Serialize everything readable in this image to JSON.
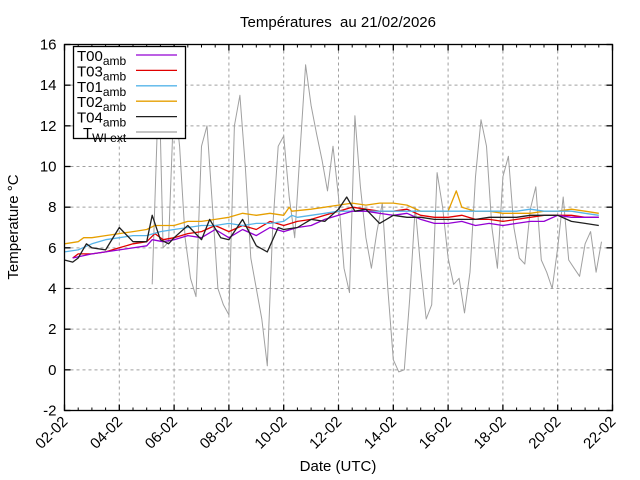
{
  "chart_data": {
    "type": "line",
    "title": "Températures  au 21/02/2026",
    "xlabel": "Date (UTC)",
    "ylabel": "Temperature °C",
    "xlim": [
      0,
      20
    ],
    "ylim": [
      -2,
      16
    ],
    "grid": true,
    "legend_position": "top-left",
    "x_unit": "days since 02-02",
    "xticks": [
      {
        "value": 0,
        "label": "02-02"
      },
      {
        "value": 2,
        "label": "04-02"
      },
      {
        "value": 4,
        "label": "06-02"
      },
      {
        "value": 6,
        "label": "08-02"
      },
      {
        "value": 8,
        "label": "10-02"
      },
      {
        "value": 10,
        "label": "12-02"
      },
      {
        "value": 12,
        "label": "14-02"
      },
      {
        "value": 14,
        "label": "16-02"
      },
      {
        "value": 16,
        "label": "18-02"
      },
      {
        "value": 18,
        "label": "20-02"
      },
      {
        "value": 20,
        "label": "22-02"
      }
    ],
    "yticks": [
      {
        "value": -2,
        "label": "-2"
      },
      {
        "value": 0,
        "label": "0"
      },
      {
        "value": 2,
        "label": "2"
      },
      {
        "value": 4,
        "label": "4"
      },
      {
        "value": 6,
        "label": "6"
      },
      {
        "value": 8,
        "label": "8"
      },
      {
        "value": 10,
        "label": "10"
      },
      {
        "value": 12,
        "label": "12"
      },
      {
        "value": 14,
        "label": "14"
      },
      {
        "value": 16,
        "label": "16"
      }
    ],
    "series": [
      {
        "name": "T00",
        "sub": "amb",
        "color": "#9400d3",
        "x": [
          0.3,
          1,
          1.5,
          2,
          3,
          3.2,
          3.6,
          4,
          4.5,
          5,
          5.5,
          6,
          6.5,
          7,
          7.5,
          8,
          8.5,
          9,
          9.5,
          10,
          10.5,
          11,
          11.5,
          12,
          12.5,
          13,
          13.5,
          14,
          14.5,
          15,
          15.5,
          16,
          16.5,
          17,
          17.5,
          18,
          18.5,
          19,
          19.5
        ],
        "y": [
          5.5,
          5.7,
          5.8,
          5.9,
          6.1,
          6.4,
          6.3,
          6.4,
          6.6,
          6.5,
          6.9,
          6.5,
          6.9,
          6.6,
          7.0,
          6.8,
          7.0,
          7.1,
          7.4,
          7.6,
          7.8,
          7.8,
          7.7,
          7.6,
          7.7,
          7.4,
          7.2,
          7.2,
          7.3,
          7.1,
          7.2,
          7.1,
          7.2,
          7.3,
          7.3,
          7.6,
          7.5,
          7.5,
          7.5
        ]
      },
      {
        "name": "T03",
        "sub": "amb",
        "color": "#e00000",
        "x": [
          0.3,
          0.5,
          1,
          1.5,
          2,
          2.5,
          3,
          3.3,
          3.6,
          4,
          4.5,
          5,
          5.5,
          6,
          6.5,
          7,
          7.5,
          8,
          8.5,
          9,
          9.5,
          10,
          10.5,
          11,
          11.5,
          12,
          12.5,
          13,
          13.5,
          14,
          14.5,
          15,
          15.5,
          16,
          16.5,
          17,
          17.5,
          18,
          18.5,
          19,
          19.5
        ],
        "y": [
          5.5,
          5.7,
          5.7,
          5.8,
          6.0,
          6.2,
          6.3,
          6.7,
          6.4,
          6.5,
          6.7,
          6.8,
          7.1,
          6.8,
          7.1,
          6.9,
          7.3,
          7.1,
          7.3,
          7.4,
          7.6,
          7.8,
          8.0,
          7.9,
          7.8,
          7.8,
          7.9,
          7.6,
          7.5,
          7.5,
          7.6,
          7.4,
          7.4,
          7.3,
          7.4,
          7.5,
          7.6,
          7.6,
          7.6,
          7.5,
          7.5
        ]
      },
      {
        "name": "T01",
        "sub": "amb",
        "color": "#56b4e9",
        "x": [
          0,
          0.5,
          1,
          1.5,
          2,
          2.5,
          3,
          3.5,
          4,
          4.5,
          5,
          5.5,
          6,
          6.5,
          7,
          7.5,
          8,
          8.3,
          8.5,
          9,
          9.5,
          10,
          10.5,
          11,
          11.5,
          12,
          12.5,
          13,
          13.5,
          14,
          14.5,
          15,
          15.5,
          16,
          16.5,
          17,
          17.5,
          18,
          18.5,
          19,
          19.5
        ],
        "y": [
          5.8,
          5.9,
          6.2,
          6.4,
          6.5,
          6.6,
          6.6,
          6.8,
          6.9,
          7.0,
          7.1,
          7.1,
          7.2,
          7.1,
          7.2,
          7.2,
          7.3,
          7.6,
          7.5,
          7.6,
          7.7,
          7.8,
          7.8,
          7.8,
          7.8,
          7.8,
          7.8,
          7.8,
          7.8,
          7.8,
          7.8,
          7.8,
          7.8,
          7.8,
          7.8,
          7.9,
          7.8,
          7.8,
          7.8,
          7.7,
          7.6
        ]
      },
      {
        "name": "T02",
        "sub": "amb",
        "color": "#e69f00",
        "x": [
          0,
          0.5,
          0.7,
          1,
          1.5,
          2,
          2.5,
          3,
          3.3,
          3.6,
          4,
          4.5,
          5,
          5.5,
          6,
          6.5,
          7,
          7.5,
          8,
          8.2,
          8.3,
          9,
          9.5,
          10,
          10.5,
          11,
          11.5,
          12,
          12.5,
          13,
          13.5,
          14,
          14.3,
          14.5,
          15,
          15.5,
          16,
          16.5,
          17,
          17.5,
          18,
          18.5,
          19,
          19.5
        ],
        "y": [
          6.2,
          6.3,
          6.5,
          6.5,
          6.6,
          6.7,
          6.8,
          6.9,
          7.1,
          7.1,
          7.1,
          7.3,
          7.3,
          7.4,
          7.5,
          7.7,
          7.6,
          7.7,
          7.6,
          8.0,
          7.8,
          7.9,
          8.0,
          8.1,
          8.2,
          8.1,
          8.2,
          8.2,
          8.1,
          7.8,
          7.8,
          7.8,
          8.8,
          8.0,
          7.8,
          7.8,
          7.7,
          7.7,
          7.7,
          7.8,
          7.8,
          7.9,
          7.8,
          7.7
        ]
      },
      {
        "name": "T04",
        "sub": "amb",
        "color": "#202020",
        "x": [
          0,
          0.3,
          0.5,
          0.8,
          1,
          1.5,
          2,
          2.5,
          3,
          3.2,
          3.5,
          3.8,
          4,
          4.5,
          5,
          5.3,
          5.7,
          6,
          6.5,
          7,
          7.4,
          7.8,
          8,
          8.5,
          9,
          9.5,
          10,
          10.3,
          10.6,
          11,
          11.5,
          12,
          12.5,
          13,
          13.5,
          14,
          14.5,
          15,
          15.5,
          16,
          16.5,
          17,
          17.5,
          18,
          18.5,
          19,
          19.5
        ],
        "y": [
          5.4,
          5.3,
          5.5,
          6.2,
          6.0,
          5.9,
          7.0,
          6.3,
          6.3,
          7.6,
          6.4,
          6.2,
          6.5,
          7.1,
          6.4,
          7.4,
          6.5,
          6.4,
          7.4,
          6.1,
          5.8,
          7.0,
          6.9,
          7.0,
          7.4,
          7.3,
          7.9,
          8.5,
          7.8,
          7.9,
          7.2,
          7.6,
          7.5,
          7.5,
          7.4,
          7.4,
          7.4,
          7.4,
          7.5,
          7.5,
          7.5,
          7.6,
          7.6,
          7.6,
          7.3,
          7.2,
          7.1
        ]
      },
      {
        "name": "T",
        "sub": "WI ext",
        "color": "#a0a0a0",
        "x": [
          3.2,
          3.4,
          3.5,
          3.6,
          3.8,
          4.0,
          4.2,
          4.4,
          4.6,
          4.8,
          5.0,
          5.2,
          5.4,
          5.6,
          5.8,
          6.0,
          6.2,
          6.4,
          6.6,
          6.8,
          7.0,
          7.2,
          7.4,
          7.6,
          7.8,
          8.0,
          8.2,
          8.4,
          8.6,
          8.8,
          9.0,
          9.2,
          9.4,
          9.6,
          9.8,
          10.0,
          10.2,
          10.4,
          10.6,
          10.8,
          11.0,
          11.2,
          11.4,
          11.6,
          11.8,
          12.0,
          12.2,
          12.4,
          12.6,
          12.8,
          13.0,
          13.2,
          13.4,
          13.6,
          13.8,
          14.0,
          14.2,
          14.4,
          14.6,
          14.8,
          15.0,
          15.2,
          15.4,
          15.6,
          15.8,
          16.0,
          16.2,
          16.4,
          16.6,
          16.8,
          17.0,
          17.2,
          17.4,
          17.6,
          17.8,
          18.0,
          18.2,
          18.4,
          18.6,
          18.8,
          19.0,
          19.2,
          19.4,
          19.6
        ],
        "y": [
          4.2,
          12.5,
          11.5,
          6.0,
          6.3,
          13.5,
          11.0,
          6.5,
          4.5,
          3.6,
          11.0,
          12.0,
          8.0,
          4.0,
          3.2,
          2.7,
          12.0,
          13.5,
          10.0,
          5.5,
          4.0,
          2.5,
          0.2,
          7.0,
          11.0,
          11.5,
          8.5,
          6.5,
          10.8,
          15.0,
          13.0,
          11.6,
          10.3,
          8.8,
          11.0,
          8.5,
          5.0,
          3.8,
          12.5,
          9.0,
          6.5,
          5.0,
          6.8,
          8.2,
          4.0,
          0.5,
          -0.1,
          0.0,
          3.5,
          8.0,
          5.0,
          2.5,
          3.2,
          9.7,
          8.0,
          5.5,
          4.2,
          4.5,
          2.8,
          4.8,
          9.5,
          12.3,
          11.0,
          7.0,
          5.0,
          9.5,
          10.5,
          7.0,
          5.5,
          5.2,
          7.9,
          9.0,
          5.4,
          4.8,
          4.0,
          6.0,
          8.5,
          5.4,
          5.0,
          4.6,
          6.2,
          6.8,
          4.8,
          6.3
        ]
      }
    ]
  }
}
